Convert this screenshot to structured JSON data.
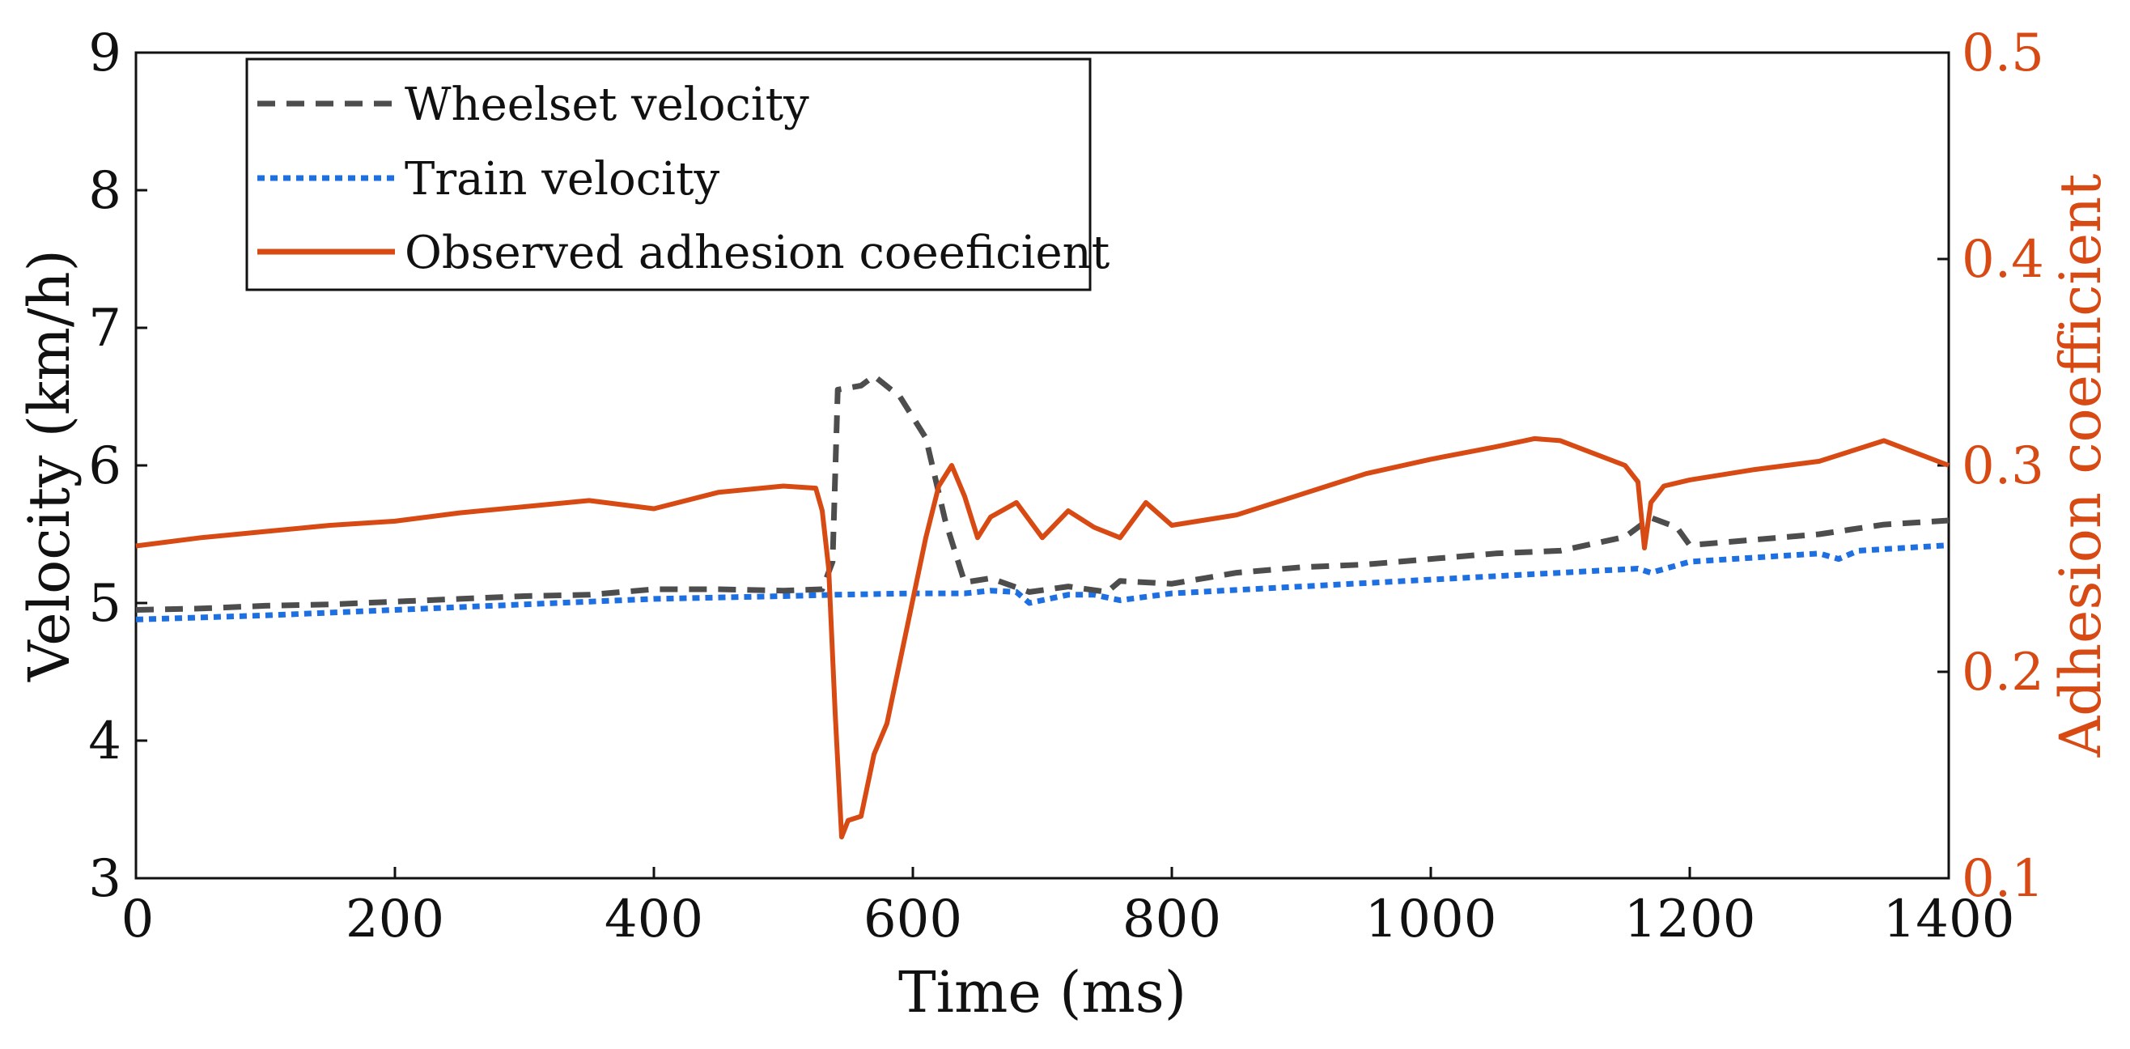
{
  "chart_data": {
    "type": "line",
    "title": "",
    "xlabel": "Time (ms)",
    "ylabel": "Velocity (km/h)",
    "y2label": "Adhesion coefficient",
    "xlim": [
      0,
      1400
    ],
    "ylim": [
      3,
      9
    ],
    "y2lim": [
      0.1,
      0.5
    ],
    "xticks": [
      "0",
      "200",
      "400",
      "600",
      "800",
      "1000",
      "1200",
      "1400"
    ],
    "yticks": [
      "3",
      "4",
      "5",
      "6",
      "7",
      "8",
      "9"
    ],
    "y2ticks": [
      "0.1",
      "0.2",
      "0.3",
      "0.4",
      "0.5"
    ],
    "legend_position": "top-left",
    "colors": {
      "wheelset": "#4D4D4D",
      "train": "#1E6FE0",
      "adhesion": "#D84A14",
      "right_axis": "#D84A14"
    },
    "series": [
      {
        "name": "Wheelset velocity",
        "axis": "left",
        "style": "dashed",
        "x": [
          0,
          50,
          100,
          150,
          200,
          250,
          300,
          350,
          400,
          450,
          500,
          530,
          538,
          542,
          560,
          570,
          590,
          610,
          625,
          640,
          660,
          690,
          720,
          750,
          760,
          800,
          850,
          900,
          950,
          1000,
          1050,
          1100,
          1150,
          1170,
          1190,
          1200,
          1250,
          1300,
          1350,
          1400
        ],
        "values": [
          4.95,
          4.96,
          4.98,
          4.99,
          5.01,
          5.03,
          5.05,
          5.06,
          5.1,
          5.1,
          5.09,
          5.1,
          5.3,
          6.55,
          6.58,
          6.65,
          6.5,
          6.2,
          5.6,
          5.15,
          5.18,
          5.08,
          5.12,
          5.08,
          5.16,
          5.14,
          5.22,
          5.26,
          5.28,
          5.32,
          5.36,
          5.38,
          5.48,
          5.62,
          5.55,
          5.42,
          5.46,
          5.5,
          5.57,
          5.6
        ]
      },
      {
        "name": "Train velocity",
        "axis": "left",
        "style": "dotted",
        "x": [
          0,
          100,
          200,
          300,
          400,
          500,
          540,
          600,
          640,
          660,
          680,
          690,
          720,
          740,
          760,
          800,
          900,
          1000,
          1100,
          1160,
          1170,
          1200,
          1300,
          1315,
          1330,
          1400
        ],
        "values": [
          4.88,
          4.91,
          4.95,
          4.99,
          5.03,
          5.05,
          5.06,
          5.07,
          5.07,
          5.09,
          5.08,
          5.0,
          5.06,
          5.06,
          5.02,
          5.07,
          5.12,
          5.17,
          5.22,
          5.25,
          5.22,
          5.3,
          5.36,
          5.32,
          5.38,
          5.42
        ]
      },
      {
        "name": "Observed adhesion coeeficient",
        "axis": "right",
        "style": "solid",
        "x": [
          0,
          50,
          100,
          150,
          200,
          250,
          300,
          350,
          400,
          450,
          500,
          525,
          530,
          535,
          540,
          545,
          550,
          560,
          570,
          580,
          590,
          600,
          610,
          620,
          630,
          640,
          650,
          660,
          680,
          700,
          720,
          740,
          760,
          780,
          800,
          850,
          900,
          950,
          1000,
          1050,
          1080,
          1100,
          1150,
          1160,
          1165,
          1170,
          1180,
          1200,
          1250,
          1300,
          1350,
          1400
        ],
        "values": [
          0.261,
          0.265,
          0.268,
          0.271,
          0.273,
          0.277,
          0.28,
          0.283,
          0.279,
          0.287,
          0.29,
          0.289,
          0.278,
          0.25,
          0.18,
          0.12,
          0.128,
          0.13,
          0.16,
          0.175,
          0.205,
          0.235,
          0.265,
          0.29,
          0.3,
          0.285,
          0.265,
          0.275,
          0.282,
          0.265,
          0.278,
          0.27,
          0.265,
          0.282,
          0.271,
          0.276,
          0.286,
          0.296,
          0.303,
          0.309,
          0.313,
          0.312,
          0.3,
          0.292,
          0.26,
          0.282,
          0.29,
          0.293,
          0.298,
          0.302,
          0.312,
          0.3
        ]
      }
    ]
  }
}
